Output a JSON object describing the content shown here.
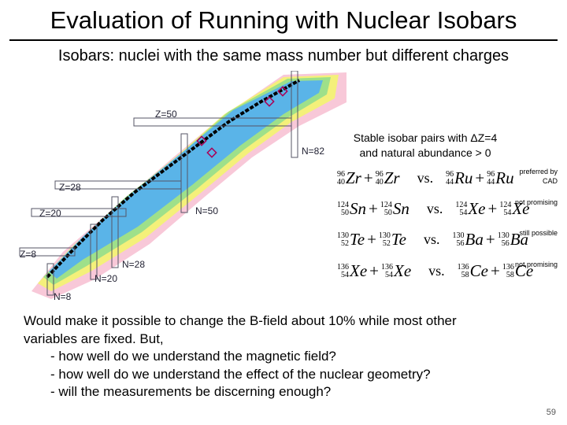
{
  "header": {
    "title": "Evaluation of Running with Nuclear Isobars",
    "subtitle": "Isobars: nuclei with the same mass number but different charges"
  },
  "chart_labels": [
    {
      "text": "Z=50"
    },
    {
      "text": "N=82"
    },
    {
      "text": "Z=28"
    },
    {
      "text": "N=50"
    },
    {
      "text": "Z=20"
    },
    {
      "text": "Z=8"
    },
    {
      "text": "N=28"
    },
    {
      "text": "N=20"
    },
    {
      "text": "N=8"
    }
  ],
  "pairs_heading": [
    "Stable isobar pairs with ΔZ=4",
    "and natural abundance > 0"
  ],
  "pairs": [
    {
      "left": [
        {
          "A": "96",
          "Z": "40",
          "sym": "Zr"
        },
        {
          "A": "96",
          "Z": "40",
          "sym": "Zr"
        }
      ],
      "operator": "+",
      "versus": "vs.",
      "right": [
        {
          "A": "96",
          "Z": "44",
          "sym": "Ru"
        },
        {
          "A": "96",
          "Z": "44",
          "sym": "Ru"
        }
      ],
      "note": "preferred by CAD"
    },
    {
      "left": [
        {
          "A": "124",
          "Z": "50",
          "sym": "Sn"
        },
        {
          "A": "124",
          "Z": "50",
          "sym": "Sn"
        }
      ],
      "operator": "+",
      "versus": "vs.",
      "right": [
        {
          "A": "124",
          "Z": "54",
          "sym": "Xe"
        },
        {
          "A": "124",
          "Z": "54",
          "sym": "Xe"
        }
      ],
      "note": "not promising"
    },
    {
      "left": [
        {
          "A": "130",
          "Z": "52",
          "sym": "Te"
        },
        {
          "A": "130",
          "Z": "52",
          "sym": "Te"
        }
      ],
      "operator": "+",
      "versus": "vs.",
      "right": [
        {
          "A": "130",
          "Z": "56",
          "sym": "Ba"
        },
        {
          "A": "130",
          "Z": "56",
          "sym": "Ba"
        }
      ],
      "note": "still possible"
    },
    {
      "left": [
        {
          "A": "136",
          "Z": "54",
          "sym": "Xe"
        },
        {
          "A": "136",
          "Z": "54",
          "sym": "Xe"
        }
      ],
      "operator": "+",
      "versus": "vs.",
      "right": [
        {
          "A": "136",
          "Z": "58",
          "sym": "Ce"
        },
        {
          "A": "136",
          "Z": "58",
          "sym": "Ce"
        }
      ],
      "note": "not promising"
    }
  ],
  "body": {
    "lines": [
      "Would make it possible to change the B-field about 10% while most other",
      "variables are fixed. But,"
    ],
    "bullets": [
      "- how well do we understand the magnetic field?",
      "- how well do we understand the effect of the nuclear geometry?",
      "- will the measurements be discerning enough?"
    ]
  },
  "page_number": "59"
}
